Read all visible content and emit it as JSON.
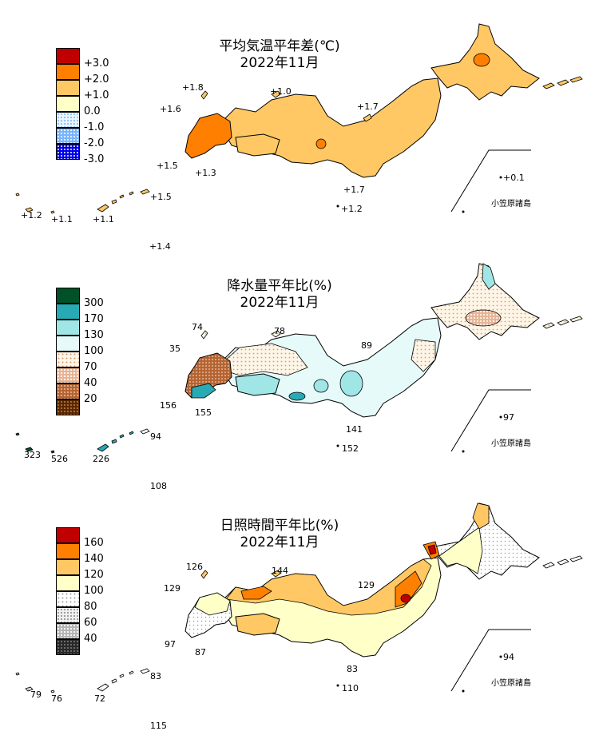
{
  "panels": [
    {
      "title_line1": "平均気温平年差(℃)",
      "title_line2": "2022年11月",
      "legend": [
        {
          "label": "+3.0",
          "color": "#c00000"
        },
        {
          "label": "+2.0",
          "color": "#ff8000"
        },
        {
          "label": "+1.0",
          "color": "#ffc864"
        },
        {
          "label": "0.0",
          "color": "#ffffc8"
        },
        {
          "label": "-1.0",
          "color": "#dcf0ff"
        },
        {
          "label": "-2.0",
          "color": "#78b4ff"
        },
        {
          "label": "-3.0",
          "color": "#0000e6"
        }
      ],
      "values": [
        "+1.8",
        "+1.0",
        "+1.6",
        "+1.7",
        "+1.5",
        "+1.3",
        "+1.7",
        "+1.2",
        "+1.2",
        "+1.1",
        "+1.1",
        "+1.5",
        "+1.4",
        "+0.1"
      ],
      "island_name": "小笠原諸島"
    },
    {
      "title_line1": "降水量平年比(%)",
      "title_line2": "2022年11月",
      "legend": [
        {
          "label": "300",
          "color": "#005028"
        },
        {
          "label": "170",
          "color": "#28aab4"
        },
        {
          "label": "130",
          "color": "#a0e6e6"
        },
        {
          "label": "100",
          "color": "#e6fafa"
        },
        {
          "label": "70",
          "color": "#fff5e6"
        },
        {
          "label": "40",
          "color": "#e6b496"
        },
        {
          "label": "20",
          "color": "#b46432"
        },
        {
          "label": "",
          "color": "#5a2800"
        }
      ],
      "values": [
        "74",
        "78",
        "35",
        "89",
        "156",
        "155",
        "141",
        "152",
        "323",
        "526",
        "226",
        "94",
        "108",
        "97"
      ],
      "island_name": "小笠原諸島"
    },
    {
      "title_line1": "日照時間平年比(%)",
      "title_line2": "2022年11月",
      "legend": [
        {
          "label": "160",
          "color": "#c00000"
        },
        {
          "label": "140",
          "color": "#ff8000"
        },
        {
          "label": "120",
          "color": "#ffc864"
        },
        {
          "label": "100",
          "color": "#ffffc8"
        },
        {
          "label": "80",
          "color": "#f0f0f0"
        },
        {
          "label": "60",
          "color": "#b4b4b4"
        },
        {
          "label": "40",
          "color": "#646464"
        },
        {
          "label": "",
          "color": "#282828"
        }
      ],
      "values": [
        "126",
        "144",
        "129",
        "129",
        "97",
        "87",
        "83",
        "110",
        "79",
        "76",
        "72",
        "83",
        "115",
        "94"
      ],
      "island_name": "小笠原諸島"
    }
  ]
}
